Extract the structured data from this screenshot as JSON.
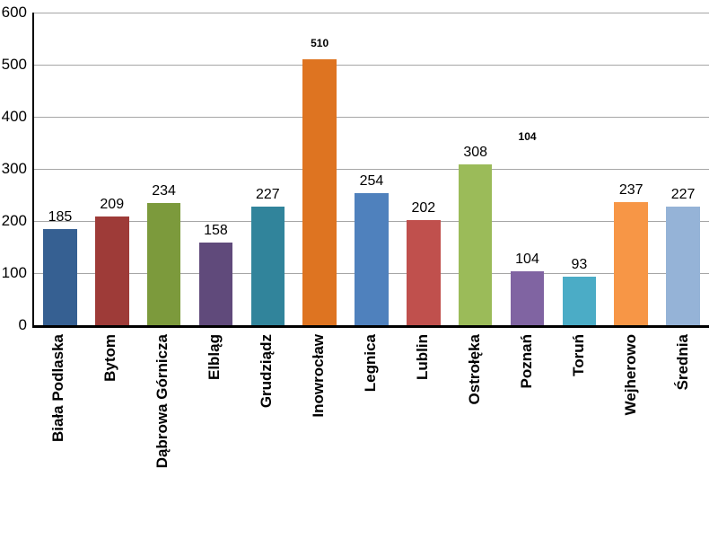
{
  "chart_data": {
    "type": "bar",
    "title": "",
    "xlabel": "",
    "ylabel": "",
    "categories": [
      "Biała Podlaska",
      "Bytom",
      "Dąbrowa Górnicza",
      "Elbląg",
      "Grudziądz",
      "Inowrocław",
      "Legnica",
      "Lublin",
      "Ostrołęka",
      "Poznań",
      "Toruń",
      "Wejherowo",
      "Średnia"
    ],
    "values": [
      185,
      209,
      234,
      158,
      227,
      510,
      254,
      202,
      308,
      104,
      93,
      237,
      227
    ],
    "labels": [
      "185",
      "209",
      "234",
      "158",
      "227",
      "510",
      "254",
      "202",
      "308",
      "104",
      "93",
      "237",
      "227"
    ],
    "colors": [
      "#366092",
      "#9E3B38",
      "#7C9A3C",
      "#604A7B",
      "#31849B",
      "#DE7421",
      "#4F81BD",
      "#C0504D",
      "#9BBB59",
      "#8064A2",
      "#4BACC6",
      "#F79646",
      "#95B3D7"
    ],
    "ylim": [
      0,
      600
    ],
    "yticks": [
      0,
      100,
      200,
      300,
      400,
      500,
      600
    ],
    "ytick_labels": [
      "0",
      "100",
      "200",
      "300",
      "400",
      "500",
      "600"
    ],
    "grid": true,
    "legend": "none",
    "small_label_indices": [
      5
    ],
    "annotations": [
      {
        "text": "104",
        "category_index": 9,
        "y_value": 350
      }
    ]
  },
  "styles": {
    "background": "#FFFFFF",
    "grid_color": "#A6A6A6",
    "axis_color": "#000000",
    "label_color": "#000000"
  }
}
